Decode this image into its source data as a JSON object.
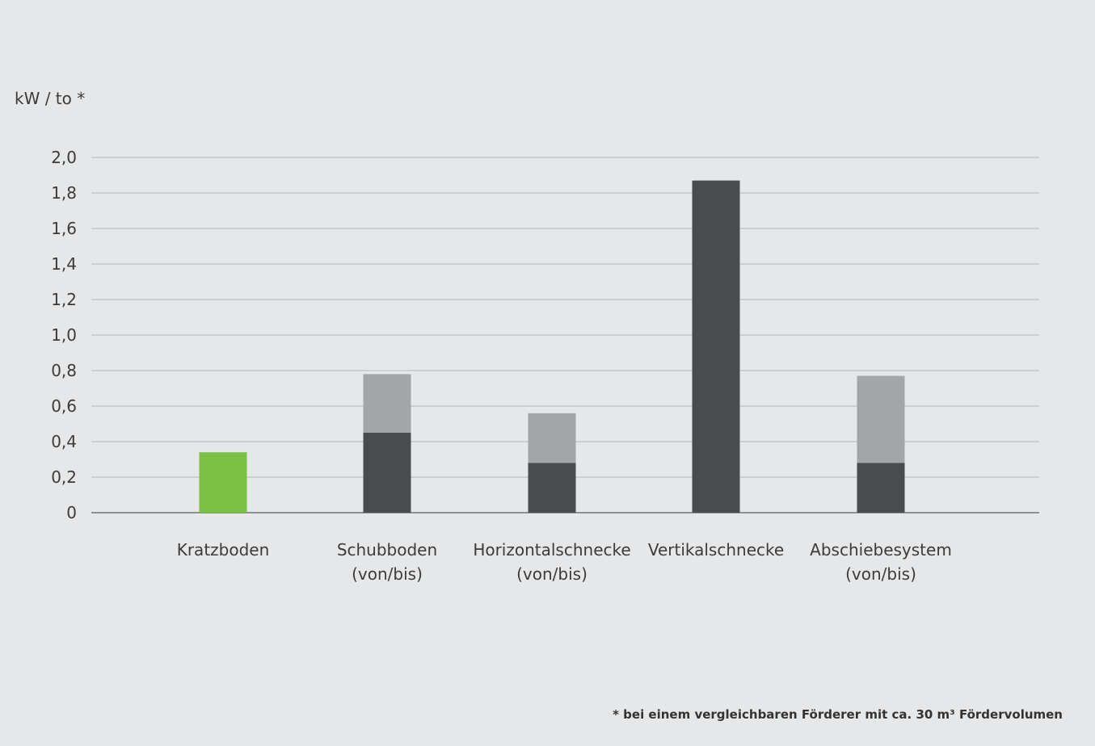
{
  "chart_data": {
    "type": "bar",
    "stacked": true,
    "ylabel": "kW / to *",
    "ylim": [
      0,
      2.0
    ],
    "y_ticks": [
      "0",
      "0,2",
      "0,4",
      "0,6",
      "0,8",
      "1,0",
      "1,2",
      "1,4",
      "1,6",
      "1,8",
      "2,0"
    ],
    "grid": true,
    "categories": [
      {
        "line1": "Kratzboden",
        "line2": ""
      },
      {
        "line1": "Schubboden",
        "line2": "(von/bis)"
      },
      {
        "line1": "Horizontalschnecke",
        "line2": "(von/bis)"
      },
      {
        "line1": "Vertikalschnecke",
        "line2": ""
      },
      {
        "line1": "Abschiebesystem",
        "line2": "(von/bis)"
      }
    ],
    "bars": [
      {
        "von": 0.34,
        "bis": 0.34,
        "color": "#7ac143"
      },
      {
        "von": 0.45,
        "bis": 0.78,
        "color": "#4a4b4d",
        "range_color": "#a4a5a7"
      },
      {
        "von": 0.28,
        "bis": 0.56,
        "color": "#4a4b4d",
        "range_color": "#a4a5a7"
      },
      {
        "von": 1.87,
        "bis": 1.87,
        "color": "#4a4b4d"
      },
      {
        "von": 0.28,
        "bis": 0.77,
        "color": "#4a4b4d",
        "range_color": "#a4a5a7"
      }
    ],
    "footnote": "* bei einem vergleichbaren Förderer mit ca. 30 m³ Fördervolumen"
  }
}
